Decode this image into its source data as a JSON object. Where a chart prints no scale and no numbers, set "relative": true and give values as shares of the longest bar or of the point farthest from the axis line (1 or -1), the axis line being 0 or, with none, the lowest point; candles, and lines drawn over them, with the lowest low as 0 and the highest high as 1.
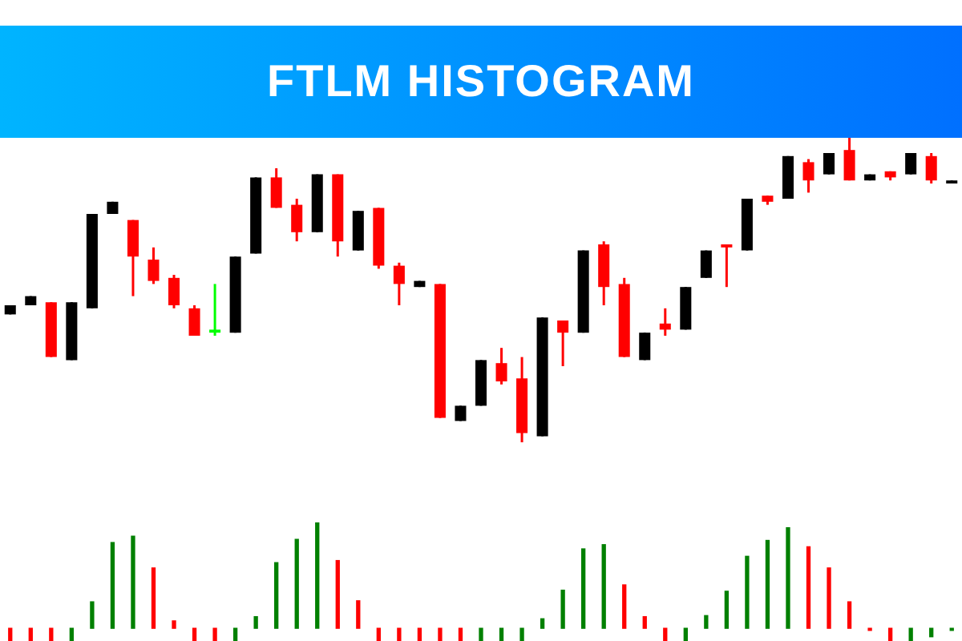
{
  "chart_data": [
    {
      "type": "candlestick",
      "title": "FTLM HISTOGRAM",
      "relative": true,
      "categories": [
        null,
        null,
        null,
        null,
        null,
        null,
        null,
        null,
        null,
        null,
        null,
        null,
        null,
        null,
        null,
        null,
        null,
        null,
        null,
        null,
        null,
        null,
        null,
        null,
        null,
        null,
        null,
        null,
        null,
        null,
        null,
        null,
        null,
        null,
        null,
        null,
        null,
        null,
        null,
        null,
        null,
        null,
        null,
        null,
        null,
        null,
        null
      ],
      "ohlc": [
        [
          0.42,
          0.45,
          0.42,
          0.45
        ],
        [
          0.45,
          0.48,
          0.45,
          0.48
        ],
        [
          0.46,
          0.46,
          0.28,
          0.28
        ],
        [
          0.27,
          0.46,
          0.27,
          0.46
        ],
        [
          0.44,
          0.75,
          0.44,
          0.75
        ],
        [
          0.75,
          0.79,
          0.75,
          0.79
        ],
        [
          0.73,
          0.73,
          0.48,
          0.61
        ],
        [
          0.6,
          0.64,
          0.52,
          0.53
        ],
        [
          0.54,
          0.55,
          0.44,
          0.45
        ],
        [
          0.44,
          0.45,
          0.35,
          0.35
        ],
        [
          0.37,
          0.52,
          0.35,
          0.36
        ],
        [
          0.36,
          0.61,
          0.36,
          0.61
        ],
        [
          0.62,
          0.87,
          0.62,
          0.87
        ],
        [
          0.87,
          0.9,
          0.77,
          0.77
        ],
        [
          0.78,
          0.8,
          0.66,
          0.69
        ],
        [
          0.69,
          0.88,
          0.69,
          0.88
        ],
        [
          0.88,
          0.88,
          0.61,
          0.66
        ],
        [
          0.63,
          0.76,
          0.63,
          0.76
        ],
        [
          0.77,
          0.77,
          0.57,
          0.58
        ],
        [
          0.58,
          0.59,
          0.45,
          0.52
        ],
        [
          0.51,
          0.53,
          0.51,
          0.53
        ],
        [
          0.52,
          0.52,
          0.08,
          0.08
        ],
        [
          0.07,
          0.12,
          0.07,
          0.12
        ],
        [
          0.12,
          0.27,
          0.12,
          0.27
        ],
        [
          0.26,
          0.31,
          0.19,
          0.2
        ],
        [
          0.21,
          0.28,
          0,
          0.03
        ],
        [
          0.02,
          0.41,
          0.02,
          0.41
        ],
        [
          0.4,
          0.4,
          0.25,
          0.36
        ],
        [
          0.36,
          0.63,
          0.36,
          0.63
        ],
        [
          0.65,
          0.66,
          0.45,
          0.51
        ],
        [
          0.52,
          0.54,
          0.28,
          0.28
        ],
        [
          0.27,
          0.36,
          0.27,
          0.36
        ],
        [
          0.39,
          0.44,
          0.35,
          0.37
        ],
        [
          0.37,
          0.51,
          0.37,
          0.51
        ],
        [
          0.54,
          0.63,
          0.54,
          0.63
        ],
        [
          0.65,
          0.65,
          0.51,
          0.64
        ],
        [
          0.63,
          0.8,
          0.63,
          0.8
        ],
        [
          0.81,
          0.81,
          0.78,
          0.79
        ],
        [
          0.8,
          0.94,
          0.8,
          0.94
        ],
        [
          0.92,
          0.93,
          0.82,
          0.86
        ],
        [
          0.88,
          0.95,
          0.88,
          0.95
        ],
        [
          0.96,
          1,
          0.86,
          0.86
        ],
        [
          0.86,
          0.88,
          0.86,
          0.88
        ],
        [
          0.89,
          0.89,
          0.86,
          0.87
        ],
        [
          0.88,
          0.95,
          0.88,
          0.95
        ],
        [
          0.94,
          0.95,
          0.85,
          0.86
        ],
        [
          0.85,
          0.86,
          0.85,
          0.86
        ]
      ],
      "colors": [
        "#000000",
        "#000000",
        "#ff0000",
        "#000000",
        "#000000",
        "#000000",
        "#ff0000",
        "#ff0000",
        "#ff0000",
        "#ff0000",
        "#00ff00",
        "#000000",
        "#000000",
        "#ff0000",
        "#ff0000",
        "#000000",
        "#ff0000",
        "#000000",
        "#ff0000",
        "#ff0000",
        "#000000",
        "#ff0000",
        "#000000",
        "#000000",
        "#ff0000",
        "#ff0000",
        "#000000",
        "#ff0000",
        "#000000",
        "#ff0000",
        "#ff0000",
        "#000000",
        "#ff0000",
        "#000000",
        "#000000",
        "#ff0000",
        "#000000",
        "#ff0000",
        "#000000",
        "#ff0000",
        "#000000",
        "#ff0000",
        "#000000",
        "#ff0000",
        "#000000",
        "#ff0000",
        "#000000"
      ]
    },
    {
      "type": "bar",
      "relative": true,
      "categories": [
        null,
        null,
        null,
        null,
        null,
        null,
        null,
        null,
        null,
        null,
        null,
        null,
        null,
        null,
        null,
        null,
        null,
        null,
        null,
        null,
        null,
        null,
        null,
        null,
        null,
        null,
        null,
        null,
        null,
        null,
        null,
        null,
        null,
        null,
        null,
        null,
        null,
        null,
        null,
        null,
        null,
        null,
        null,
        null,
        null,
        null,
        null
      ],
      "values": [
        -0.12,
        -0.12,
        -0.12,
        -0.12,
        0.25,
        0.81,
        0.87,
        0.57,
        0.07,
        -0.12,
        -0.12,
        -0.12,
        0.11,
        0.62,
        0.84,
        1,
        0.64,
        0.26,
        -0.12,
        -0.12,
        -0.12,
        -0.12,
        -0.12,
        -0.12,
        -0.12,
        -0.12,
        0.09,
        0.36,
        0.75,
        0.79,
        0.41,
        0.11,
        -0.12,
        -0.12,
        0.12,
        0.35,
        0.68,
        0.83,
        0.95,
        0.77,
        0.57,
        0.25,
        -0.02,
        -0.12,
        -0.12,
        -0.08,
        -0.02
      ],
      "colors": [
        "#ff0000",
        "#ff0000",
        "#ff0000",
        "#008000",
        "#008000",
        "#008000",
        "#008000",
        "#ff0000",
        "#ff0000",
        "#ff0000",
        "#ff0000",
        "#008000",
        "#008000",
        "#008000",
        "#008000",
        "#008000",
        "#ff0000",
        "#ff0000",
        "#ff0000",
        "#ff0000",
        "#ff0000",
        "#ff0000",
        "#ff0000",
        "#008000",
        "#008000",
        "#008000",
        "#008000",
        "#008000",
        "#008000",
        "#008000",
        "#ff0000",
        "#ff0000",
        "#ff0000",
        "#008000",
        "#008000",
        "#008000",
        "#008000",
        "#008000",
        "#008000",
        "#ff0000",
        "#ff0000",
        "#ff0000",
        "#ff0000",
        "#ff0000",
        "#008000",
        "#008000",
        "#008000"
      ]
    }
  ]
}
